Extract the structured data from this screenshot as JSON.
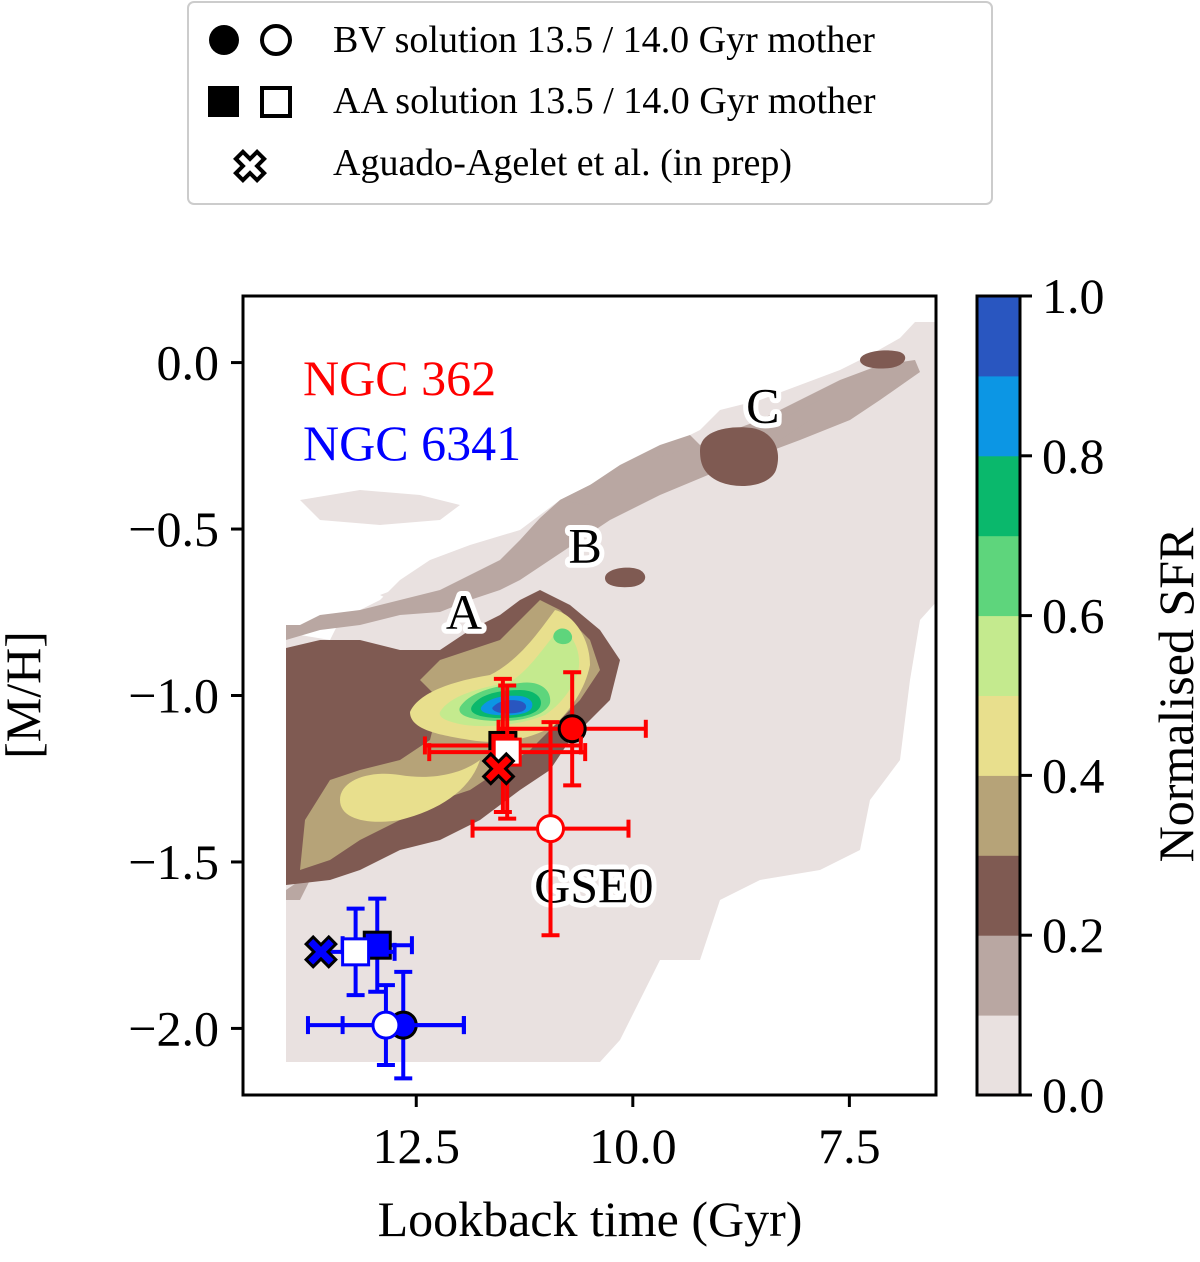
{
  "chart_data": {
    "type": "scatter",
    "title": "",
    "xlabel": "Lookback time (Gyr)",
    "ylabel": "[M/H]",
    "xlim": [
      14.5,
      6.5
    ],
    "ylim": [
      -2.2,
      0.2
    ],
    "x_ticks": [
      12.5,
      10.0,
      7.5
    ],
    "x_tick_labels": [
      "12.5",
      "10.0",
      "7.5"
    ],
    "y_ticks": [
      0.0,
      -0.5,
      -1.0,
      -1.5,
      -2.0
    ],
    "y_tick_labels": [
      "0.0",
      "−0.5",
      "−1.0",
      "−1.5",
      "−2.0"
    ],
    "colorbar": {
      "label": "Normalised SFR",
      "ticks": [
        "0.0",
        "0.2",
        "0.4",
        "0.6",
        "0.8",
        "1.0"
      ],
      "levels": [
        {
          "range": [
            0.0,
            0.1
          ],
          "color": "#e9e1e0"
        },
        {
          "range": [
            0.1,
            0.2
          ],
          "color": "#b9a7a2"
        },
        {
          "range": [
            0.2,
            0.3
          ],
          "color": "#7f5a52"
        },
        {
          "range": [
            0.3,
            0.4
          ],
          "color": "#b6a378"
        },
        {
          "range": [
            0.4,
            0.5
          ],
          "color": "#e8df8d"
        },
        {
          "range": [
            0.5,
            0.6
          ],
          "color": "#c4ea8e"
        },
        {
          "range": [
            0.6,
            0.7
          ],
          "color": "#5ed57c"
        },
        {
          "range": [
            0.7,
            0.8
          ],
          "color": "#0ab86c"
        },
        {
          "range": [
            0.8,
            0.9
          ],
          "color": "#0c96e4"
        },
        {
          "range": [
            0.9,
            1.0
          ],
          "color": "#2956c0"
        }
      ]
    },
    "region_labels": [
      {
        "text": "A",
        "x": 11.95,
        "y": -0.8
      },
      {
        "text": "B",
        "x": 10.55,
        "y": -0.6
      },
      {
        "text": "C",
        "x": 8.5,
        "y": -0.18
      },
      {
        "text": "GSE0",
        "x": 10.45,
        "y": -1.62
      }
    ],
    "cluster_labels": [
      {
        "text": "NGC 362",
        "color": "#ff0000"
      },
      {
        "text": "NGC 6341",
        "color": "#0000ff"
      }
    ],
    "legend": {
      "placement": "top",
      "entries": [
        {
          "label": "BV solution 13.5 / 14.0 Gyr mother",
          "markers": [
            "filled-circle",
            "open-circle"
          ]
        },
        {
          "label": "AA solution 13.5 / 14.0 Gyr mother",
          "markers": [
            "filled-square",
            "open-square"
          ]
        },
        {
          "label": "Aguado-Agelet et al. (in prep)",
          "markers": [
            "open-x"
          ]
        }
      ]
    },
    "series": [
      {
        "name": "NGC 362 BV 13.5",
        "color": "#ff0000",
        "marker": "circle",
        "fill": "#000000",
        "x": 10.7,
        "y": -1.1,
        "xerr": 0.85,
        "yerr": 0.17
      },
      {
        "name": "NGC 362 BV 14.0",
        "color": "#ff0000",
        "marker": "circle",
        "fill": "#ffffff",
        "x": 10.95,
        "y": -1.4,
        "xerr": 0.9,
        "yerr": 0.32
      },
      {
        "name": "NGC 362 AA 13.5",
        "color": "#ff0000",
        "marker": "square",
        "fill": "#000000",
        "x": 11.5,
        "y": -1.15,
        "xerr": 0.9,
        "yerr": 0.2
      },
      {
        "name": "NGC 362 AA 14.0",
        "color": "#ff0000",
        "marker": "square",
        "fill": "#ffffff",
        "x": 11.45,
        "y": -1.17,
        "xerr": 0.9,
        "yerr": 0.2
      },
      {
        "name": "NGC 362 Aguado-Agelet",
        "color": "#ff0000",
        "marker": "x",
        "fill": "#000000",
        "x": 11.55,
        "y": -1.22
      },
      {
        "name": "NGC 6341 BV 13.5",
        "color": "#0000ff",
        "marker": "circle",
        "fill": "#000000",
        "x": 12.65,
        "y": -1.99,
        "xerr": 0.7,
        "yerr": 0.16
      },
      {
        "name": "NGC 6341 BV 14.0",
        "color": "#0000ff",
        "marker": "circle",
        "fill": "#ffffff",
        "x": 12.85,
        "y": -1.99,
        "xerr": 0.9,
        "yerr": 0.12
      },
      {
        "name": "NGC 6341 AA 13.5",
        "color": "#0000ff",
        "marker": "square",
        "fill": "#000000",
        "x": 12.95,
        "y": -1.75,
        "xerr": 0.4,
        "yerr": 0.14
      },
      {
        "name": "NGC 6341 AA 14.0",
        "color": "#0000ff",
        "marker": "square",
        "fill": "#ffffff",
        "x": 13.2,
        "y": -1.77,
        "xerr": 0.45,
        "yerr": 0.13
      },
      {
        "name": "NGC 6341 Aguado-Agelet",
        "color": "#0000ff",
        "marker": "x",
        "fill": "#000000",
        "x": 13.6,
        "y": -1.77
      }
    ]
  }
}
